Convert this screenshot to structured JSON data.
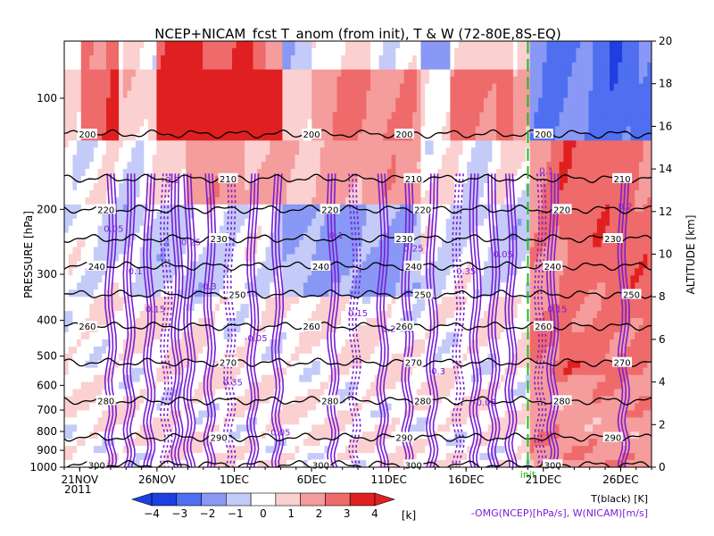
{
  "chart_data": {
    "type": "heatmap",
    "title": "NCEP+NICAM_fcst T_anom (from init), T & W  (72-80E,8S-EQ)",
    "ylabel": "PRESSURE [hPa]",
    "y2label": "ALTITUDE [km]",
    "x_tick_labels": [
      "21NOV",
      "26NOV",
      "1DEC",
      "6DEC",
      "11DEC",
      "16DEC",
      "21DEC",
      "26DEC"
    ],
    "x_year_label": "2011",
    "x_tick_days": [
      0,
      5,
      10,
      15,
      20,
      25,
      30,
      35
    ],
    "xlim_days": [
      -1,
      37
    ],
    "init_day": 29,
    "init_label": "init",
    "pressure_ticks": [
      100,
      200,
      300,
      400,
      500,
      600,
      700,
      800,
      900,
      1000
    ],
    "ylim_hPa": [
      1000,
      70
    ],
    "altitude_ticks_km": [
      0,
      2,
      4,
      6,
      8,
      10,
      12,
      14,
      16,
      18,
      20
    ],
    "colorbar": {
      "levels": [
        -4,
        -3,
        -2,
        -1,
        0,
        1,
        2,
        3,
        4
      ],
      "tick_labels": [
        "−4",
        "−3",
        "−2",
        "−1",
        "0",
        "1",
        "2",
        "3",
        "4"
      ],
      "unit": "[k]",
      "colors": [
        "#1f3fe0",
        "#4f6ff0",
        "#8898f4",
        "#c4cbf8",
        "#ffffff",
        "#fbd0d0",
        "#f59c9c",
        "#ef6a6a",
        "#e02020"
      ]
    },
    "temperature_contours": [
      {
        "level": 200,
        "p_hPa": 125
      },
      {
        "level": 210,
        "p_hPa": 165
      },
      {
        "level": 220,
        "p_hPa": 200
      },
      {
        "level": 230,
        "p_hPa": 240
      },
      {
        "level": 240,
        "p_hPa": 285
      },
      {
        "level": 250,
        "p_hPa": 340
      },
      {
        "level": 260,
        "p_hPa": 415
      },
      {
        "level": 270,
        "p_hPa": 520
      },
      {
        "level": 280,
        "p_hPa": 660
      },
      {
        "level": 290,
        "p_hPa": 830
      },
      {
        "level": 300,
        "p_hPa": 985
      }
    ],
    "w_labels": [
      "0.05",
      "0.1",
      "0.15",
      "0.2",
      "0.25",
      "0.3",
      "0.35",
      "-0.05"
    ],
    "legend": {
      "t_label": "T(black) [K]",
      "w_label": "-OMG(NCEP)[hPa/s], W(NICAM)[m/s]"
    },
    "colors": {
      "warm": "#e02020",
      "cold": "#2040e0",
      "w_contour": "#7a1fd6",
      "init_line": "#22bb22",
      "t_contour": "#000000"
    }
  }
}
